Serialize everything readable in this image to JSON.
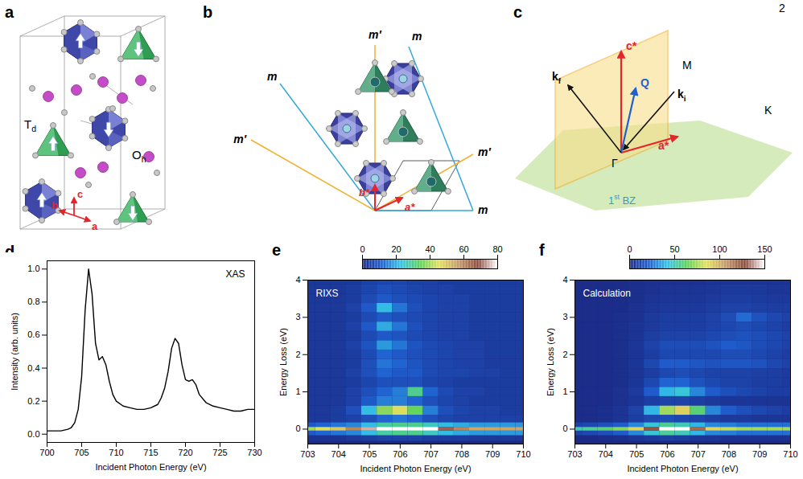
{
  "page_number": "2",
  "diagrams": [
    {
      "panel": "a",
      "labels": [
        {
          "base": "T",
          "sub": "d"
        },
        {
          "base": "O",
          "sub": "h"
        }
      ],
      "axes": [
        "a",
        "b",
        "c"
      ]
    },
    {
      "panel": "b",
      "mirrors": [
        "m′",
        "m",
        "m",
        "m′",
        "m",
        "m′"
      ],
      "axes": [
        "a*",
        "b*"
      ]
    },
    {
      "panel": "c",
      "vectors": [
        {
          "base": "c*"
        },
        {
          "base": "Q"
        },
        {
          "base": "k",
          "sub": "f"
        },
        {
          "base": "k",
          "sub": "i"
        },
        {
          "base": "a*"
        }
      ],
      "points": [
        "M",
        "K",
        "Γ"
      ],
      "zone": {
        "base": "1",
        "sup": "st",
        "after": " BZ"
      }
    }
  ],
  "chart_data": [
    {
      "panel": "d",
      "type": "line",
      "title": "XAS",
      "x_label": "Incident Photon Energy (eV)",
      "y_label": "Intensity (arb. units)",
      "color": "#000000",
      "x": [
        700,
        701,
        702,
        703,
        703.5,
        704,
        704.5,
        705,
        705.5,
        706,
        706.5,
        707,
        707.5,
        708,
        708.5,
        709,
        709.5,
        710,
        711,
        712,
        713,
        714,
        715,
        716,
        716.5,
        717,
        717.5,
        718,
        718.5,
        719,
        719.5,
        720,
        720.5,
        721,
        721.5,
        722,
        723,
        724,
        725,
        726,
        727,
        728,
        729,
        730
      ],
      "values": [
        0.02,
        0.02,
        0.02,
        0.03,
        0.04,
        0.07,
        0.15,
        0.35,
        0.75,
        1.0,
        0.85,
        0.55,
        0.45,
        0.47,
        0.42,
        0.32,
        0.24,
        0.2,
        0.17,
        0.16,
        0.15,
        0.15,
        0.16,
        0.18,
        0.22,
        0.28,
        0.38,
        0.52,
        0.58,
        0.55,
        0.42,
        0.33,
        0.32,
        0.33,
        0.3,
        0.24,
        0.19,
        0.17,
        0.16,
        0.15,
        0.14,
        0.14,
        0.15,
        0.15
      ],
      "xlim": [
        700,
        730
      ],
      "xticks": [
        700,
        705,
        710,
        715,
        720,
        725,
        730
      ],
      "ylim": [
        -0.05,
        1.05
      ],
      "yticks": [
        {
          "value": 0,
          "label": "0.0"
        },
        {
          "value": 0.2,
          "label": "0.2"
        },
        {
          "value": 0.4,
          "label": "0.4"
        },
        {
          "value": 0.6,
          "label": "0.6"
        },
        {
          "value": 0.8,
          "label": "0.8"
        },
        {
          "value": 1,
          "label": "1.0"
        }
      ]
    },
    {
      "panel": "e",
      "type": "heatmap",
      "title": "RIXS",
      "x_label": "Incident Photon Energy (eV)",
      "y_label": "Energy Loss (eV)",
      "x": [
        703,
        703.5,
        704,
        704.5,
        705,
        705.5,
        706,
        706.5,
        707,
        707.5,
        708,
        708.5,
        709,
        709.5,
        710
      ],
      "y": [
        -0.25,
        -0.1,
        0,
        0.1,
        0.25,
        0.5,
        0.75,
        1,
        1.25,
        1.5,
        1.75,
        2,
        2.25,
        2.5,
        2.75,
        3,
        3.25,
        3.5,
        3.75,
        4
      ],
      "cells": [
        [
          2,
          2,
          2,
          3,
          4,
          5,
          5,
          5,
          4,
          4,
          4,
          3,
          3,
          3,
          3
        ],
        [
          10,
          12,
          14,
          16,
          22,
          28,
          30,
          30,
          26,
          22,
          20,
          18,
          18,
          18,
          18
        ],
        [
          40,
          45,
          50,
          60,
          75,
          85,
          90,
          90,
          80,
          70,
          60,
          55,
          55,
          55,
          55
        ],
        [
          10,
          12,
          14,
          16,
          22,
          28,
          30,
          30,
          26,
          22,
          20,
          18,
          18,
          18,
          18
        ],
        [
          3,
          3,
          4,
          5,
          8,
          12,
          14,
          12,
          8,
          6,
          5,
          5,
          5,
          5,
          5
        ],
        [
          3,
          3,
          4,
          8,
          22,
          38,
          45,
          35,
          15,
          8,
          6,
          5,
          5,
          4,
          4
        ],
        [
          3,
          3,
          3,
          5,
          10,
          15,
          15,
          12,
          8,
          6,
          5,
          4,
          4,
          4,
          4
        ],
        [
          3,
          3,
          3,
          5,
          8,
          12,
          15,
          30,
          12,
          7,
          5,
          5,
          4,
          4,
          4
        ],
        [
          3,
          3,
          3,
          4,
          6,
          8,
          8,
          8,
          6,
          5,
          4,
          4,
          4,
          4,
          4
        ],
        [
          3,
          3,
          3,
          5,
          8,
          12,
          10,
          10,
          7,
          6,
          6,
          5,
          5,
          4,
          4
        ],
        [
          3,
          3,
          3,
          4,
          8,
          14,
          12,
          9,
          7,
          6,
          5,
          5,
          4,
          4,
          4
        ],
        [
          3,
          3,
          3,
          4,
          7,
          12,
          10,
          8,
          7,
          6,
          5,
          5,
          4,
          4,
          4
        ],
        [
          3,
          3,
          3,
          5,
          9,
          18,
          14,
          9,
          7,
          6,
          5,
          5,
          4,
          4,
          4
        ],
        [
          3,
          3,
          3,
          4,
          7,
          10,
          9,
          7,
          6,
          5,
          5,
          4,
          4,
          4,
          4
        ],
        [
          3,
          3,
          3,
          5,
          10,
          20,
          14,
          8,
          6,
          5,
          5,
          4,
          4,
          4,
          4
        ],
        [
          3,
          3,
          3,
          4,
          7,
          10,
          8,
          7,
          6,
          5,
          5,
          4,
          4,
          4,
          4
        ],
        [
          3,
          3,
          3,
          5,
          10,
          22,
          14,
          8,
          6,
          5,
          5,
          4,
          4,
          4,
          4
        ],
        [
          3,
          3,
          3,
          4,
          7,
          10,
          8,
          7,
          6,
          5,
          5,
          4,
          4,
          4,
          4
        ],
        [
          3,
          3,
          3,
          4,
          6,
          8,
          7,
          6,
          5,
          5,
          4,
          4,
          4,
          4,
          4
        ],
        [
          3,
          3,
          3,
          3,
          5,
          6,
          6,
          5,
          5,
          4,
          4,
          4,
          4,
          4,
          4
        ]
      ],
      "xlim": [
        703,
        710
      ],
      "xticks": [
        703,
        704,
        705,
        706,
        707,
        708,
        709,
        710
      ],
      "ylim": [
        -0.4,
        4
      ],
      "yticks": [
        0,
        1,
        2,
        3,
        4
      ],
      "colorbar_range": [
        0,
        80
      ],
      "colorbar_ticks": [
        0,
        20,
        40,
        60,
        80
      ]
    },
    {
      "panel": "f",
      "type": "heatmap",
      "title": "Calculation",
      "x_label": "Incident Photon Energy (eV)",
      "y_label": "Energy Loss (eV)",
      "x": [
        703,
        703.5,
        704,
        704.5,
        705,
        705.5,
        706,
        706.5,
        707,
        707.5,
        708,
        708.5,
        709,
        709.5,
        710
      ],
      "y": [
        -0.25,
        -0.1,
        0,
        0.1,
        0.25,
        0.5,
        0.75,
        1,
        1.25,
        1.5,
        1.75,
        2,
        2.25,
        2.5,
        2.75,
        3,
        3.25,
        3.5,
        3.75,
        4
      ],
      "cells": [
        [
          0,
          0,
          1,
          2,
          4,
          6,
          8,
          7,
          5,
          4,
          3,
          3,
          3,
          3,
          3
        ],
        [
          10,
          12,
          15,
          20,
          30,
          45,
          55,
          50,
          40,
          30,
          28,
          25,
          25,
          25,
          25
        ],
        [
          50,
          55,
          60,
          70,
          90,
          130,
          160,
          150,
          120,
          90,
          80,
          75,
          75,
          75,
          75
        ],
        [
          10,
          12,
          15,
          20,
          30,
          45,
          55,
          50,
          40,
          30,
          28,
          25,
          25,
          25,
          25
        ],
        [
          1,
          1,
          2,
          4,
          8,
          12,
          14,
          12,
          10,
          8,
          6,
          6,
          5,
          5,
          5
        ],
        [
          1,
          1,
          2,
          4,
          10,
          40,
          75,
          90,
          60,
          30,
          20,
          15,
          12,
          10,
          8
        ],
        [
          1,
          1,
          1,
          3,
          5,
          8,
          10,
          10,
          8,
          6,
          5,
          5,
          4,
          4,
          4
        ],
        [
          1,
          1,
          1,
          3,
          6,
          20,
          40,
          45,
          30,
          20,
          15,
          12,
          10,
          8,
          8
        ],
        [
          1,
          1,
          1,
          2,
          5,
          12,
          22,
          22,
          16,
          12,
          10,
          10,
          8,
          8,
          7
        ],
        [
          1,
          1,
          1,
          2,
          4,
          8,
          12,
          14,
          12,
          10,
          10,
          10,
          9,
          8,
          7
        ],
        [
          1,
          1,
          1,
          2,
          5,
          12,
          20,
          20,
          18,
          16,
          18,
          18,
          16,
          12,
          10
        ],
        [
          1,
          1,
          1,
          2,
          4,
          8,
          12,
          12,
          12,
          12,
          14,
          14,
          12,
          10,
          8
        ],
        [
          1,
          1,
          1,
          2,
          5,
          10,
          14,
          14,
          14,
          16,
          20,
          18,
          14,
          12,
          10
        ],
        [
          1,
          1,
          1,
          2,
          4,
          8,
          10,
          10,
          10,
          12,
          14,
          16,
          14,
          12,
          10
        ],
        [
          1,
          1,
          1,
          2,
          4,
          6,
          8,
          8,
          8,
          10,
          12,
          14,
          12,
          10,
          8
        ],
        [
          1,
          1,
          1,
          2,
          3,
          6,
          8,
          8,
          8,
          10,
          14,
          24,
          16,
          12,
          10
        ],
        [
          1,
          1,
          1,
          1,
          3,
          5,
          6,
          6,
          6,
          8,
          10,
          10,
          9,
          8,
          8
        ],
        [
          1,
          1,
          1,
          1,
          2,
          4,
          5,
          5,
          5,
          6,
          8,
          8,
          7,
          6,
          6
        ],
        [
          1,
          1,
          1,
          1,
          2,
          3,
          4,
          4,
          4,
          5,
          6,
          6,
          6,
          5,
          5
        ],
        [
          1,
          1,
          1,
          1,
          2,
          3,
          3,
          3,
          3,
          4,
          4,
          4,
          4,
          4,
          4
        ]
      ],
      "xlim": [
        703,
        710
      ],
      "xticks": [
        703,
        704,
        705,
        706,
        707,
        708,
        709,
        710
      ],
      "ylim": [
        -0.4,
        4
      ],
      "yticks": [
        0,
        1,
        2,
        3,
        4
      ],
      "colorbar_range": [
        0,
        150
      ],
      "colorbar_ticks": [
        0,
        50,
        100,
        150
      ]
    }
  ]
}
